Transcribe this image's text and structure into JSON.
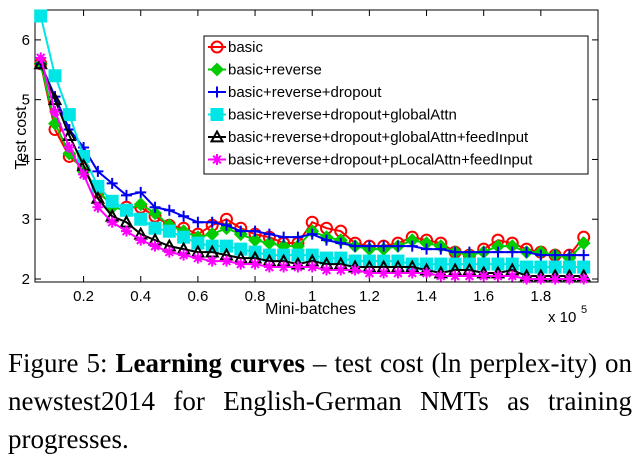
{
  "chart_data": {
    "type": "line",
    "title": "",
    "xlabel": "Mini-batches",
    "ylabel": "Test cost",
    "x_multiplier": "x 10",
    "x_multiplier_exp": "5",
    "xlim": [
      0.03,
      2.0
    ],
    "ylim": [
      1.95,
      6.5
    ],
    "x_ticks": [
      0.2,
      0.4,
      0.6,
      0.8,
      1,
      1.2,
      1.4,
      1.6,
      1.8
    ],
    "x_tick_labels": [
      "0.2",
      "0.4",
      "0.6",
      "0.8",
      "1",
      "1.2",
      "1.4",
      "1.6",
      "1.8"
    ],
    "y_ticks": [
      2,
      3,
      4,
      5,
      6
    ],
    "y_tick_labels": [
      "2",
      "3",
      "4",
      "5",
      "6"
    ],
    "legend_position": "top-right",
    "series": [
      {
        "name": "basic",
        "color": "#ff0000",
        "marker": "circle",
        "x": [
          0.05,
          0.1,
          0.15,
          0.2,
          0.25,
          0.3,
          0.35,
          0.4,
          0.45,
          0.5,
          0.55,
          0.6,
          0.65,
          0.7,
          0.75,
          0.8,
          0.85,
          0.9,
          0.95,
          1.0,
          1.05,
          1.1,
          1.15,
          1.2,
          1.25,
          1.3,
          1.35,
          1.4,
          1.45,
          1.5,
          1.55,
          1.6,
          1.65,
          1.7,
          1.75,
          1.8,
          1.85,
          1.9,
          1.95
        ],
        "values": [
          5.6,
          4.5,
          4.05,
          3.85,
          3.45,
          3.25,
          3.2,
          3.2,
          3.05,
          2.9,
          2.85,
          2.75,
          2.9,
          3.0,
          2.85,
          2.75,
          2.7,
          2.6,
          2.6,
          2.95,
          2.85,
          2.8,
          2.6,
          2.55,
          2.55,
          2.6,
          2.7,
          2.65,
          2.6,
          2.45,
          2.4,
          2.5,
          2.65,
          2.6,
          2.5,
          2.45,
          2.4,
          2.4,
          2.7
        ]
      },
      {
        "name": "basic+reverse",
        "color": "#00cc00",
        "marker": "diamond",
        "x": [
          0.05,
          0.1,
          0.15,
          0.2,
          0.25,
          0.3,
          0.35,
          0.4,
          0.45,
          0.5,
          0.55,
          0.6,
          0.65,
          0.7,
          0.75,
          0.8,
          0.85,
          0.9,
          0.95,
          1.0,
          1.05,
          1.1,
          1.15,
          1.2,
          1.25,
          1.3,
          1.35,
          1.4,
          1.45,
          1.5,
          1.55,
          1.6,
          1.65,
          1.7,
          1.75,
          1.8,
          1.85,
          1.9,
          1.95
        ],
        "values": [
          5.6,
          4.6,
          4.1,
          3.8,
          3.5,
          3.2,
          3.15,
          3.25,
          3.1,
          2.9,
          2.8,
          2.7,
          2.75,
          2.85,
          2.75,
          2.65,
          2.6,
          2.55,
          2.55,
          2.8,
          2.7,
          2.65,
          2.55,
          2.5,
          2.5,
          2.55,
          2.65,
          2.6,
          2.55,
          2.45,
          2.4,
          2.45,
          2.55,
          2.55,
          2.45,
          2.45,
          2.4,
          2.35,
          2.6
        ]
      },
      {
        "name": "basic+reverse+dropout",
        "color": "#0000ee",
        "marker": "plus",
        "x": [
          0.05,
          0.1,
          0.15,
          0.2,
          0.25,
          0.3,
          0.35,
          0.4,
          0.45,
          0.5,
          0.55,
          0.6,
          0.65,
          0.7,
          0.75,
          0.8,
          0.85,
          0.9,
          0.95,
          1.0,
          1.05,
          1.1,
          1.15,
          1.2,
          1.25,
          1.3,
          1.35,
          1.4,
          1.45,
          1.5,
          1.55,
          1.6,
          1.65,
          1.7,
          1.75,
          1.8,
          1.85,
          1.9,
          1.95
        ],
        "values": [
          5.6,
          5.05,
          4.5,
          4.2,
          3.8,
          3.6,
          3.4,
          3.45,
          3.2,
          3.15,
          3.05,
          2.95,
          2.95,
          2.9,
          2.8,
          2.8,
          2.75,
          2.7,
          2.7,
          2.75,
          2.65,
          2.6,
          2.55,
          2.55,
          2.55,
          2.55,
          2.55,
          2.5,
          2.5,
          2.45,
          2.45,
          2.45,
          2.45,
          2.45,
          2.45,
          2.4,
          2.4,
          2.4,
          2.4
        ]
      },
      {
        "name": "basic+reverse+dropout+globalAttn",
        "color": "#00e5e5",
        "marker": "square",
        "x": [
          0.05,
          0.1,
          0.15,
          0.2,
          0.25,
          0.3,
          0.35,
          0.4,
          0.45,
          0.5,
          0.55,
          0.6,
          0.65,
          0.7,
          0.75,
          0.8,
          0.85,
          0.9,
          0.95,
          1.0,
          1.05,
          1.1,
          1.15,
          1.2,
          1.25,
          1.3,
          1.35,
          1.4,
          1.45,
          1.5,
          1.55,
          1.6,
          1.65,
          1.7,
          1.75,
          1.8,
          1.85,
          1.9,
          1.95
        ],
        "values": [
          6.4,
          5.4,
          4.75,
          4.05,
          3.55,
          3.3,
          3.15,
          3.0,
          2.85,
          2.8,
          2.7,
          2.6,
          2.55,
          2.55,
          2.5,
          2.45,
          2.4,
          2.4,
          2.4,
          2.4,
          2.35,
          2.35,
          2.3,
          2.3,
          2.3,
          2.3,
          2.25,
          2.25,
          2.25,
          2.25,
          2.25,
          2.25,
          2.25,
          2.25,
          2.2,
          2.2,
          2.2,
          2.2,
          2.2
        ]
      },
      {
        "name": "basic+reverse+dropout+globalAttn+feedInput",
        "color": "#000000",
        "marker": "triangle",
        "x": [
          0.05,
          0.1,
          0.15,
          0.2,
          0.25,
          0.3,
          0.35,
          0.4,
          0.45,
          0.5,
          0.55,
          0.6,
          0.65,
          0.7,
          0.75,
          0.8,
          0.85,
          0.9,
          0.95,
          1.0,
          1.05,
          1.1,
          1.15,
          1.2,
          1.25,
          1.3,
          1.35,
          1.4,
          1.45,
          1.5,
          1.55,
          1.6,
          1.65,
          1.7,
          1.75,
          1.8,
          1.85,
          1.9,
          1.95
        ],
        "values": [
          5.6,
          5.0,
          4.4,
          3.9,
          3.35,
          3.05,
          2.95,
          2.75,
          2.65,
          2.55,
          2.5,
          2.45,
          2.45,
          2.4,
          2.35,
          2.35,
          2.3,
          2.3,
          2.25,
          2.3,
          2.25,
          2.25,
          2.2,
          2.2,
          2.2,
          2.2,
          2.2,
          2.15,
          2.1,
          2.15,
          2.15,
          2.1,
          2.1,
          2.15,
          2.05,
          2.05,
          2.05,
          2.05,
          2.05
        ]
      },
      {
        "name": "basic+reverse+dropout+pLocalAttn+feedInput",
        "color": "#ff00ff",
        "marker": "star",
        "x": [
          0.05,
          0.1,
          0.15,
          0.2,
          0.25,
          0.3,
          0.35,
          0.4,
          0.45,
          0.5,
          0.55,
          0.6,
          0.65,
          0.7,
          0.75,
          0.8,
          0.85,
          0.9,
          0.95,
          1.0,
          1.05,
          1.1,
          1.15,
          1.2,
          1.25,
          1.3,
          1.35,
          1.4,
          1.45,
          1.5,
          1.55,
          1.6,
          1.65,
          1.7,
          1.75,
          1.8,
          1.85,
          1.9,
          1.95
        ],
        "values": [
          5.7,
          4.8,
          4.2,
          3.75,
          3.2,
          2.95,
          2.8,
          2.65,
          2.55,
          2.45,
          2.4,
          2.35,
          2.3,
          2.3,
          2.25,
          2.25,
          2.2,
          2.2,
          2.2,
          2.2,
          2.15,
          2.15,
          2.15,
          2.1,
          2.1,
          2.1,
          2.1,
          2.1,
          2.05,
          2.05,
          2.05,
          2.05,
          2.05,
          2.05,
          2.0,
          2.0,
          2.0,
          2.0,
          2.0
        ]
      }
    ]
  },
  "caption": {
    "label": "Figure 5:",
    "bold": "Learning curves",
    "text": " – test cost (ln perplex-ity) on newstest2014 for English-German NMTs as training progresses."
  }
}
